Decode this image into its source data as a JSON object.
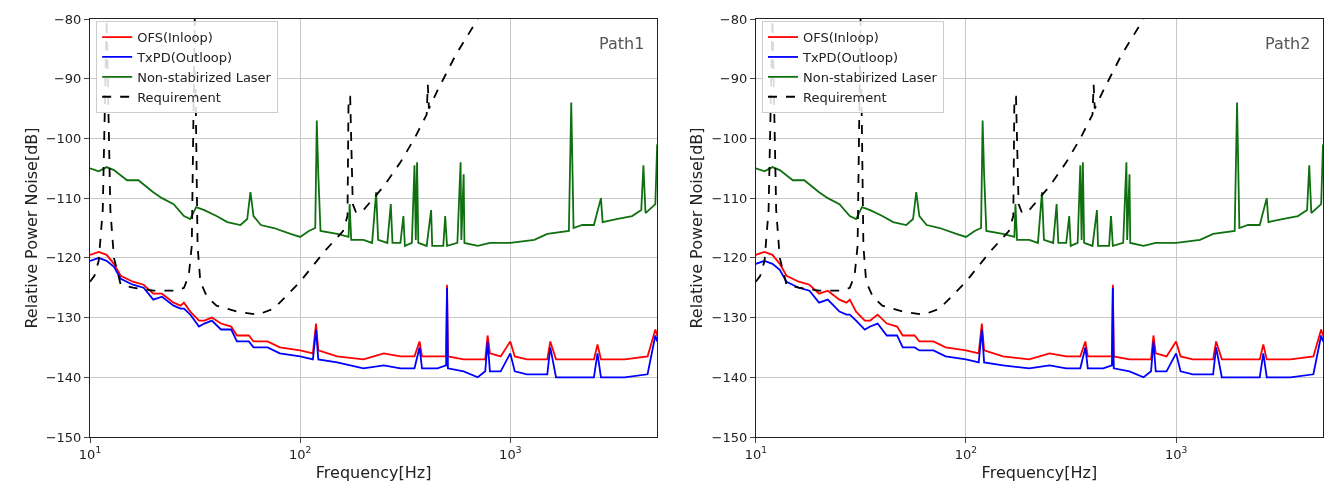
{
  "chart_data": [
    {
      "type": "line",
      "annotations": [
        "Path1"
      ],
      "xlabel": "Frequency[Hz]",
      "ylabel": "Relative Power Noise[dB]",
      "log": "x",
      "grid": true,
      "legend": "top left",
      "marker": "none",
      "xlim": [
        10,
        5000
      ],
      "xticks": [
        {
          "value": 10,
          "label": "10$^{1}$"
        },
        {
          "value": 100,
          "label": "10$^{2}$"
        },
        {
          "value": 1000,
          "label": "10$^{3}$"
        }
      ],
      "ylim": [
        -150,
        -80
      ],
      "yticks": [
        -150,
        -140,
        -130,
        -120,
        -110,
        -100,
        -90,
        -80
      ],
      "series": [
        {
          "name": "OFS(Inloop)",
          "color": "#ff0000",
          "line_style": "solid",
          "x": [
            10,
            11,
            12,
            13,
            14,
            16,
            18,
            20,
            22,
            25,
            27,
            28,
            30,
            33,
            35,
            38,
            42,
            47,
            50,
            57,
            60,
            70,
            80,
            100,
            115,
            119,
            122,
            150,
            200,
            250,
            300,
            350,
            370,
            380,
            450,
            495,
            500,
            505,
            600,
            700,
            760,
            780,
            800,
            900,
            1000,
            1050,
            1200,
            1500,
            1550,
            1650,
            2000,
            2500,
            2600,
            2700,
            3500,
            4500,
            4900,
            5000
          ],
          "values": [
            -119.5,
            -119,
            -119.5,
            -121,
            -123,
            -124,
            -124.5,
            -126,
            -126,
            -127.5,
            -128,
            -127.5,
            -129,
            -130.5,
            -130.5,
            -130,
            -131,
            -131.5,
            -133,
            -133,
            -134,
            -134,
            -135,
            -135.5,
            -136,
            -131,
            -135.5,
            -136.5,
            -137,
            -136,
            -136.5,
            -136.5,
            -134,
            -136.5,
            -136.5,
            -136.5,
            -124.5,
            -136.5,
            -137,
            -137,
            -137,
            -133,
            -136,
            -136.5,
            -134,
            -136.5,
            -137,
            -137,
            -134,
            -137,
            -137,
            -137,
            -134.5,
            -137,
            -137,
            -136.5,
            -132,
            -133
          ]
        },
        {
          "name": "TxPD(Outloop)",
          "color": "#0000ff",
          "line_style": "solid",
          "x": [
            10,
            11,
            12,
            13,
            14,
            16,
            18,
            20,
            22,
            25,
            27,
            28,
            30,
            33,
            35,
            38,
            42,
            47,
            50,
            57,
            60,
            70,
            80,
            100,
            115,
            119,
            122,
            150,
            200,
            250,
            300,
            350,
            370,
            380,
            450,
            495,
            500,
            505,
            600,
            700,
            760,
            780,
            800,
            900,
            1000,
            1050,
            1200,
            1500,
            1550,
            1650,
            2000,
            2500,
            2600,
            2700,
            3500,
            4500,
            4900,
            5000
          ],
          "values": [
            -120.5,
            -120,
            -120.5,
            -121.5,
            -123.5,
            -124.5,
            -125,
            -127,
            -126.5,
            -128,
            -128.5,
            -128.5,
            -129.5,
            -131.5,
            -131,
            -130.5,
            -132,
            -132,
            -134,
            -134,
            -135,
            -135,
            -136,
            -136.5,
            -137,
            -132,
            -137,
            -137.5,
            -138.5,
            -138,
            -138.5,
            -138.5,
            -135,
            -138.5,
            -138.5,
            -138,
            -125,
            -138.5,
            -139,
            -140,
            -139,
            -134,
            -139,
            -139,
            -136,
            -139,
            -139.5,
            -139.5,
            -135,
            -140,
            -140,
            -140,
            -136,
            -140,
            -140,
            -139.5,
            -133,
            -134
          ]
        },
        {
          "name": "Non-stabirized Laser",
          "color": "#107010",
          "line_style": "solid",
          "x": [
            10,
            11,
            12,
            13,
            15,
            17,
            20,
            22,
            25,
            28,
            30,
            32,
            35,
            40,
            45,
            52,
            56,
            58,
            60,
            65,
            75,
            90,
            100,
            110,
            118,
            120,
            122,
            125,
            150,
            170,
            172,
            175,
            200,
            220,
            230,
            235,
            260,
            270,
            275,
            300,
            310,
            315,
            340,
            350,
            355,
            360,
            365,
            400,
            420,
            425,
            480,
            490,
            500,
            560,
            580,
            585,
            600,
            605,
            700,
            800,
            1000,
            1300,
            1500,
            1900,
            1950,
            2000,
            2200,
            2500,
            2700,
            2750,
            3200,
            3800,
            4200,
            4300,
            4400,
            4900,
            5000
          ],
          "values": [
            -105,
            -105.5,
            -104.8,
            -105.3,
            -107,
            -107,
            -109,
            -110,
            -111,
            -113,
            -113.5,
            -111.5,
            -112,
            -113,
            -114,
            -114.5,
            -113.5,
            -109,
            -113,
            -114.5,
            -115,
            -116,
            -116.5,
            -115.5,
            -115,
            -97,
            -106,
            -115.5,
            -116,
            -116.5,
            -111,
            -117,
            -117,
            -117.5,
            -109,
            -117,
            -117.5,
            -111,
            -117.5,
            -117.5,
            -113,
            -118,
            -117.5,
            -104.5,
            -117,
            -104,
            -117.5,
            -118,
            -112,
            -118,
            -118,
            -113,
            -118,
            -117.5,
            -104,
            -117,
            -106,
            -117.5,
            -118,
            -117.5,
            -117.5,
            -117,
            -116,
            -115.5,
            -94,
            -115,
            -114.5,
            -114.5,
            -110,
            -114,
            -113.5,
            -113,
            -112,
            -104.5,
            -112.5,
            -111,
            -101
          ]
        },
        {
          "name": "Requirement",
          "color": "#000000",
          "line_style": "dashed",
          "x": [
            10,
            10.5,
            11,
            11.5,
            12,
            12.5,
            13,
            14,
            16,
            20,
            26,
            28,
            29.5,
            30.5,
            31.5,
            32.5,
            33.5,
            36,
            40,
            50,
            63,
            75,
            100,
            130,
            160,
            168,
            170,
            173,
            178,
            185,
            200,
            250,
            300,
            350,
            400,
            405,
            410,
            450,
            550,
            700
          ],
          "values": [
            -124,
            -123,
            -120.5,
            -112,
            -80,
            -112,
            -120,
            -124.5,
            -125,
            -125.5,
            -125.5,
            -125,
            -123,
            -118,
            -80,
            -118,
            -124,
            -126.5,
            -128,
            -129,
            -129.5,
            -128.5,
            -124,
            -119,
            -115.5,
            -113,
            -93,
            -93,
            -111,
            -112.5,
            -112,
            -108,
            -104,
            -100,
            -96,
            -91,
            -95,
            -92,
            -86,
            -80
          ]
        }
      ]
    },
    {
      "type": "line",
      "annotations": [
        "Path2"
      ],
      "xlabel": "Frequency[Hz]",
      "ylabel": "Relative Power Noise[dB]",
      "log": "x",
      "grid": true,
      "legend": "top left",
      "marker": "none",
      "xlim": [
        10,
        5000
      ],
      "xticks": [
        {
          "value": 10,
          "label": "10$^{1}$"
        },
        {
          "value": 100,
          "label": "10$^{2}$"
        },
        {
          "value": 1000,
          "label": "10$^{3}$"
        }
      ],
      "ylim": [
        -150,
        -80
      ],
      "yticks": [
        -150,
        -140,
        -130,
        -120,
        -110,
        -100,
        -90,
        -80
      ],
      "series": [
        {
          "name": "OFS(Inloop)",
          "color": "#ff0000",
          "line_style": "solid",
          "x": [
            10,
            11,
            12,
            13,
            14,
            16,
            18,
            20,
            22,
            25,
            27,
            28,
            30,
            33,
            35,
            38,
            42,
            47,
            50,
            57,
            60,
            70,
            80,
            100,
            115,
            119,
            122,
            150,
            200,
            250,
            300,
            350,
            370,
            380,
            450,
            495,
            500,
            505,
            600,
            700,
            760,
            780,
            800,
            900,
            1000,
            1050,
            1200,
            1500,
            1550,
            1650,
            2000,
            2500,
            2600,
            2700,
            3500,
            4500,
            4900,
            5000
          ],
          "values": [
            -119.5,
            -119,
            -119.5,
            -121,
            -123,
            -124,
            -124.5,
            -126,
            -125.5,
            -127,
            -127.5,
            -127,
            -129,
            -130.5,
            -130.5,
            -129.5,
            -131,
            -131.5,
            -133,
            -133,
            -134,
            -134,
            -135,
            -135.5,
            -136,
            -131,
            -135.5,
            -136.5,
            -137,
            -136,
            -136.5,
            -136.5,
            -134,
            -136.5,
            -136.5,
            -136.5,
            -124.5,
            -136.5,
            -137,
            -137,
            -137,
            -133,
            -136,
            -136.5,
            -134,
            -136.5,
            -137,
            -137,
            -134,
            -137,
            -137,
            -137,
            -134.5,
            -137,
            -137,
            -136.5,
            -132,
            -133
          ]
        },
        {
          "name": "TxPD(Outloop)",
          "color": "#0000ff",
          "line_style": "solid",
          "x": [
            10,
            11,
            12,
            13,
            14,
            16,
            18,
            20,
            22,
            25,
            27,
            28,
            30,
            33,
            35,
            38,
            42,
            47,
            50,
            57,
            60,
            70,
            80,
            100,
            115,
            119,
            122,
            150,
            200,
            250,
            300,
            350,
            370,
            380,
            450,
            495,
            500,
            505,
            600,
            700,
            760,
            780,
            800,
            900,
            1000,
            1050,
            1200,
            1500,
            1550,
            1650,
            2000,
            2500,
            2600,
            2700,
            3500,
            4500,
            4900,
            5000
          ],
          "values": [
            -121,
            -120.5,
            -121,
            -122,
            -124,
            -125,
            -125.5,
            -127.5,
            -127,
            -129,
            -129.5,
            -129.5,
            -130.5,
            -132,
            -131.5,
            -131,
            -133,
            -133,
            -135,
            -135,
            -135.5,
            -135.5,
            -136.5,
            -137,
            -137.5,
            -132,
            -137.5,
            -138,
            -138.5,
            -138,
            -138.5,
            -138.5,
            -135,
            -138.5,
            -138.5,
            -138,
            -125,
            -138.5,
            -139,
            -140,
            -139,
            -134,
            -139,
            -139,
            -136,
            -139,
            -139.5,
            -139.5,
            -135,
            -140,
            -140,
            -140,
            -136,
            -140,
            -140,
            -139.5,
            -133,
            -134
          ]
        },
        {
          "name": "Non-stabirized Laser",
          "color": "#107010",
          "line_style": "solid",
          "x": [
            10,
            11,
            12,
            13,
            15,
            17,
            20,
            22,
            25,
            28,
            30,
            32,
            35,
            40,
            45,
            52,
            56,
            58,
            60,
            65,
            75,
            90,
            100,
            110,
            118,
            120,
            122,
            125,
            150,
            170,
            172,
            175,
            200,
            220,
            230,
            235,
            260,
            270,
            275,
            300,
            310,
            315,
            340,
            350,
            355,
            360,
            365,
            400,
            420,
            425,
            480,
            490,
            500,
            560,
            580,
            585,
            600,
            605,
            700,
            800,
            1000,
            1300,
            1500,
            1900,
            1950,
            2000,
            2200,
            2500,
            2700,
            2750,
            3200,
            3800,
            4200,
            4300,
            4400,
            4900,
            5000
          ],
          "values": [
            -105,
            -105.5,
            -104.8,
            -105.3,
            -107,
            -107,
            -109,
            -110,
            -111,
            -113,
            -113.5,
            -111.5,
            -112,
            -113,
            -114,
            -114.5,
            -113.5,
            -109,
            -113,
            -114.5,
            -115,
            -116,
            -116.5,
            -115.5,
            -115,
            -97,
            -106,
            -115.5,
            -116,
            -116.5,
            -111,
            -117,
            -117,
            -117.5,
            -109,
            -117,
            -117.5,
            -111,
            -117.5,
            -117.5,
            -113,
            -118,
            -117.5,
            -104.5,
            -117,
            -104,
            -117.5,
            -118,
            -112,
            -118,
            -118,
            -113,
            -118,
            -117.5,
            -104,
            -117,
            -106,
            -117.5,
            -118,
            -117.5,
            -117.5,
            -117,
            -116,
            -115.5,
            -94,
            -115,
            -114.5,
            -114.5,
            -110,
            -114,
            -113.5,
            -113,
            -112,
            -104.5,
            -112.5,
            -111,
            -101
          ]
        },
        {
          "name": "Requirement",
          "color": "#000000",
          "line_style": "dashed",
          "x": [
            10,
            10.5,
            11,
            11.5,
            12,
            12.5,
            13,
            14,
            16,
            20,
            26,
            28,
            29.5,
            30.5,
            31.5,
            32.5,
            33.5,
            36,
            40,
            50,
            63,
            75,
            100,
            130,
            160,
            168,
            170,
            173,
            178,
            185,
            200,
            250,
            300,
            350,
            400,
            405,
            410,
            450,
            550,
            700
          ],
          "values": [
            -124,
            -123,
            -120.5,
            -112,
            -80,
            -112,
            -120,
            -124.5,
            -125,
            -125.5,
            -125.5,
            -125,
            -123,
            -118,
            -80,
            -118,
            -124,
            -126.5,
            -128,
            -129,
            -129.5,
            -128.5,
            -124,
            -119,
            -115.5,
            -113,
            -93,
            -93,
            -111,
            -112.5,
            -112,
            -108,
            -104,
            -100,
            -96,
            -91,
            -95,
            -92,
            -86,
            -80
          ]
        }
      ]
    }
  ]
}
